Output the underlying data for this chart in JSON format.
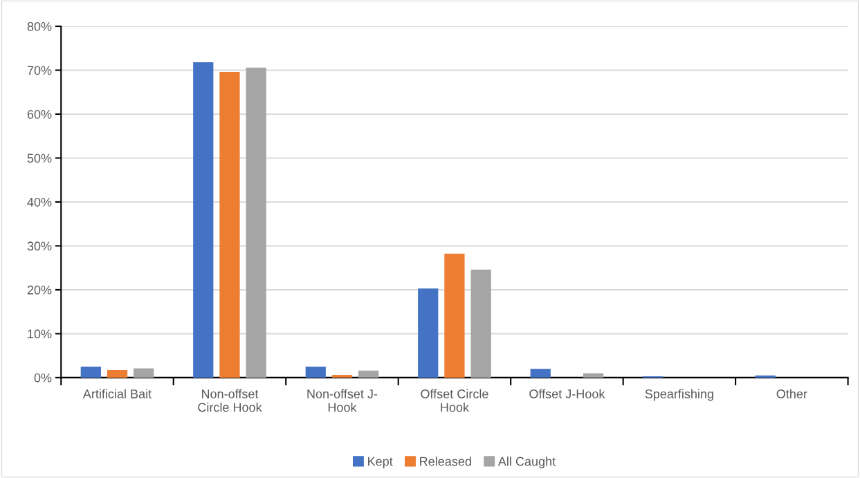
{
  "chart_data": {
    "type": "bar",
    "categories": [
      "Artificial Bait",
      "Non-offset\nCircle Hook",
      "Non-offset J-\nHook",
      "Offset Circle\nHook",
      "Offset J-Hook",
      "Spearfishing",
      "Other"
    ],
    "series": [
      {
        "name": "Kept",
        "color": "#4472c4",
        "values": [
          2.5,
          71.8,
          2.5,
          20.3,
          2.0,
          0.3,
          0.5
        ]
      },
      {
        "name": "Released",
        "color": "#ed7d31",
        "values": [
          1.7,
          69.6,
          0.6,
          28.2,
          0,
          0,
          0
        ]
      },
      {
        "name": "All Caught",
        "color": "#a5a5a5",
        "values": [
          2.1,
          70.6,
          1.6,
          24.6,
          1.0,
          0,
          0
        ]
      }
    ],
    "ylim": [
      0,
      80
    ],
    "yticks": [
      {
        "value": 0,
        "label": "0%"
      },
      {
        "value": 10,
        "label": "10%"
      },
      {
        "value": 20,
        "label": "20%"
      },
      {
        "value": 30,
        "label": "30%"
      },
      {
        "value": 40,
        "label": "40%"
      },
      {
        "value": 50,
        "label": "50%"
      },
      {
        "value": 60,
        "label": "60%"
      },
      {
        "value": 70,
        "label": "70%"
      },
      {
        "value": 80,
        "label": "80%"
      }
    ],
    "grid": "y",
    "legend": "bottom"
  }
}
